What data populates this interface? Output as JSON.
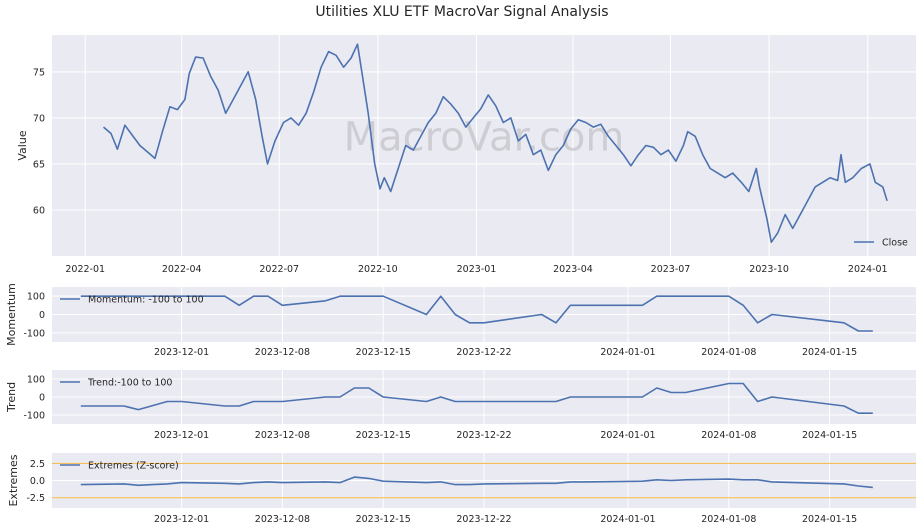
{
  "title": "Utilities XLU ETF MacroVar Signal Analysis",
  "watermark": "MacroVar.com",
  "colors": {
    "line": "#4c72b0",
    "band": "#f5b642",
    "panel_bg": "#eaeaf2",
    "grid": "#ffffff"
  },
  "chart_data": [
    {
      "type": "line",
      "ylabel": "Value",
      "legend": "bottom-right",
      "x_ticks": [
        "2022-01",
        "2022-04",
        "2022-07",
        "2022-10",
        "2023-01",
        "2023-04",
        "2023-07",
        "2023-10",
        "2024-01"
      ],
      "y_ticks": [
        "60",
        "65",
        "70",
        "75"
      ],
      "ylim": [
        55,
        79
      ],
      "xlim": [
        "2021-12-01",
        "2024-02-15"
      ],
      "series": [
        {
          "name": "Close",
          "points": [
            [
              "2022-01-18",
              69.0
            ],
            [
              "2022-01-25",
              68.3
            ],
            [
              "2022-01-31",
              66.6
            ],
            [
              "2022-02-07",
              69.2
            ],
            [
              "2022-02-14",
              68.1
            ],
            [
              "2022-02-21",
              67.0
            ],
            [
              "2022-02-28",
              66.3
            ],
            [
              "2022-03-07",
              65.6
            ],
            [
              "2022-03-10",
              66.8
            ],
            [
              "2022-03-14",
              68.5
            ],
            [
              "2022-03-21",
              71.2
            ],
            [
              "2022-03-28",
              70.9
            ],
            [
              "2022-04-04",
              72.0
            ],
            [
              "2022-04-08",
              74.8
            ],
            [
              "2022-04-14",
              76.6
            ],
            [
              "2022-04-21",
              76.5
            ],
            [
              "2022-04-28",
              74.5
            ],
            [
              "2022-05-05",
              73.0
            ],
            [
              "2022-05-12",
              70.5
            ],
            [
              "2022-05-19",
              72.0
            ],
            [
              "2022-05-26",
              73.5
            ],
            [
              "2022-06-02",
              75.0
            ],
            [
              "2022-06-09",
              72.0
            ],
            [
              "2022-06-15",
              68.0
            ],
            [
              "2022-06-20",
              65.0
            ],
            [
              "2022-06-27",
              67.5
            ],
            [
              "2022-07-05",
              69.5
            ],
            [
              "2022-07-12",
              70.0
            ],
            [
              "2022-07-19",
              69.2
            ],
            [
              "2022-07-26",
              70.5
            ],
            [
              "2022-08-02",
              72.8
            ],
            [
              "2022-08-09",
              75.5
            ],
            [
              "2022-08-16",
              77.2
            ],
            [
              "2022-08-23",
              76.8
            ],
            [
              "2022-08-30",
              75.5
            ],
            [
              "2022-09-06",
              76.5
            ],
            [
              "2022-09-12",
              78.0
            ],
            [
              "2022-09-16",
              75.0
            ],
            [
              "2022-09-22",
              70.5
            ],
            [
              "2022-09-28",
              65.0
            ],
            [
              "2022-10-03",
              62.3
            ],
            [
              "2022-10-07",
              63.5
            ],
            [
              "2022-10-13",
              62.0
            ],
            [
              "2022-10-20",
              64.5
            ],
            [
              "2022-10-27",
              67.0
            ],
            [
              "2022-11-03",
              66.5
            ],
            [
              "2022-11-10",
              68.0
            ],
            [
              "2022-11-17",
              69.5
            ],
            [
              "2022-11-24",
              70.5
            ],
            [
              "2022-12-01",
              72.3
            ],
            [
              "2022-12-08",
              71.5
            ],
            [
              "2022-12-15",
              70.5
            ],
            [
              "2022-12-22",
              69.0
            ],
            [
              "2022-12-29",
              70.0
            ],
            [
              "2023-01-05",
              71.0
            ],
            [
              "2023-01-12",
              72.5
            ],
            [
              "2023-01-19",
              71.3
            ],
            [
              "2023-01-26",
              69.5
            ],
            [
              "2023-02-02",
              70.0
            ],
            [
              "2023-02-09",
              67.5
            ],
            [
              "2023-02-16",
              68.2
            ],
            [
              "2023-02-23",
              66.0
            ],
            [
              "2023-03-02",
              66.5
            ],
            [
              "2023-03-09",
              64.3
            ],
            [
              "2023-03-16",
              66.0
            ],
            [
              "2023-03-23",
              67.0
            ],
            [
              "2023-03-30",
              68.8
            ],
            [
              "2023-04-06",
              69.8
            ],
            [
              "2023-04-13",
              69.5
            ],
            [
              "2023-04-20",
              69.0
            ],
            [
              "2023-04-27",
              69.3
            ],
            [
              "2023-05-04",
              68.0
            ],
            [
              "2023-05-11",
              67.0
            ],
            [
              "2023-05-18",
              66.0
            ],
            [
              "2023-05-25",
              64.8
            ],
            [
              "2023-06-01",
              66.0
            ],
            [
              "2023-06-08",
              67.0
            ],
            [
              "2023-06-15",
              66.8
            ],
            [
              "2023-06-22",
              66.0
            ],
            [
              "2023-06-29",
              66.5
            ],
            [
              "2023-07-06",
              65.3
            ],
            [
              "2023-07-13",
              67.0
            ],
            [
              "2023-07-17",
              68.5
            ],
            [
              "2023-07-24",
              68.0
            ],
            [
              "2023-07-31",
              66.0
            ],
            [
              "2023-08-07",
              64.5
            ],
            [
              "2023-08-14",
              64.0
            ],
            [
              "2023-08-21",
              63.5
            ],
            [
              "2023-08-28",
              64.0
            ],
            [
              "2023-09-05",
              63.0
            ],
            [
              "2023-09-12",
              62.0
            ],
            [
              "2023-09-19",
              64.5
            ],
            [
              "2023-09-22",
              62.5
            ],
            [
              "2023-09-29",
              59.0
            ],
            [
              "2023-10-03",
              56.5
            ],
            [
              "2023-10-09",
              57.5
            ],
            [
              "2023-10-16",
              59.5
            ],
            [
              "2023-10-23",
              58.0
            ],
            [
              "2023-10-30",
              59.5
            ],
            [
              "2023-11-06",
              61.0
            ],
            [
              "2023-11-13",
              62.5
            ],
            [
              "2023-11-20",
              63.0
            ],
            [
              "2023-11-27",
              63.5
            ],
            [
              "2023-12-04",
              63.2
            ],
            [
              "2023-12-07",
              66.0
            ],
            [
              "2023-12-11",
              63.0
            ],
            [
              "2023-12-18",
              63.5
            ],
            [
              "2023-12-26",
              64.5
            ],
            [
              "2024-01-03",
              65.0
            ],
            [
              "2024-01-08",
              63.0
            ],
            [
              "2024-01-15",
              62.5
            ],
            [
              "2024-01-19",
              61.0
            ]
          ]
        }
      ]
    },
    {
      "type": "line",
      "ylabel": "Momentum",
      "legend": "top-left",
      "x_ticks": [
        "2023-12-01",
        "2023-12-08",
        "2023-12-15",
        "2023-12-22",
        "2024-01-01",
        "2024-01-08",
        "2024-01-15"
      ],
      "y_ticks": [
        "100",
        "0",
        "-100"
      ],
      "ylim": [
        -150,
        150
      ],
      "xlim": [
        "2023-11-22",
        "2024-01-21"
      ],
      "series": [
        {
          "name": "Momentum: -100 to 100",
          "points": [
            [
              "2023-11-24",
              100
            ],
            [
              "2023-11-27",
              100
            ],
            [
              "2023-11-28",
              100
            ],
            [
              "2023-11-29",
              100
            ],
            [
              "2023-11-30",
              100
            ],
            [
              "2023-12-01",
              100
            ],
            [
              "2023-12-04",
              100
            ],
            [
              "2023-12-05",
              50
            ],
            [
              "2023-12-06",
              100
            ],
            [
              "2023-12-07",
              100
            ],
            [
              "2023-12-08",
              50
            ],
            [
              "2023-12-11",
              75
            ],
            [
              "2023-12-12",
              100
            ],
            [
              "2023-12-13",
              100
            ],
            [
              "2023-12-14",
              100
            ],
            [
              "2023-12-15",
              100
            ],
            [
              "2023-12-18",
              0
            ],
            [
              "2023-12-19",
              100
            ],
            [
              "2023-12-20",
              0
            ],
            [
              "2023-12-21",
              -45
            ],
            [
              "2023-12-22",
              -45
            ],
            [
              "2023-12-26",
              0
            ],
            [
              "2023-12-27",
              -45
            ],
            [
              "2023-12-28",
              50
            ],
            [
              "2023-12-29",
              50
            ],
            [
              "2024-01-02",
              50
            ],
            [
              "2024-01-03",
              100
            ],
            [
              "2024-01-04",
              100
            ],
            [
              "2024-01-05",
              100
            ],
            [
              "2024-01-08",
              100
            ],
            [
              "2024-01-09",
              50
            ],
            [
              "2024-01-10",
              -45
            ],
            [
              "2024-01-11",
              0
            ],
            [
              "2024-01-16",
              -45
            ],
            [
              "2024-01-17",
              -90
            ],
            [
              "2024-01-18",
              -90
            ]
          ]
        }
      ]
    },
    {
      "type": "line",
      "ylabel": "Trend",
      "legend": "top-left",
      "x_ticks": [
        "2023-12-01",
        "2023-12-08",
        "2023-12-15",
        "2023-12-22",
        "2024-01-01",
        "2024-01-08",
        "2024-01-15"
      ],
      "y_ticks": [
        "100",
        "0",
        "-100"
      ],
      "ylim": [
        -150,
        150
      ],
      "xlim": [
        "2023-11-22",
        "2024-01-21"
      ],
      "series": [
        {
          "name": "Trend:-100 to 100",
          "points": [
            [
              "2023-11-24",
              -50
            ],
            [
              "2023-11-27",
              -50
            ],
            [
              "2023-11-28",
              -70
            ],
            [
              "2023-11-30",
              -25
            ],
            [
              "2023-12-01",
              -25
            ],
            [
              "2023-12-04",
              -50
            ],
            [
              "2023-12-05",
              -50
            ],
            [
              "2023-12-06",
              -25
            ],
            [
              "2023-12-07",
              -25
            ],
            [
              "2023-12-08",
              -25
            ],
            [
              "2023-12-11",
              0
            ],
            [
              "2023-12-12",
              0
            ],
            [
              "2023-12-13",
              50
            ],
            [
              "2023-12-14",
              50
            ],
            [
              "2023-12-15",
              0
            ],
            [
              "2023-12-18",
              -25
            ],
            [
              "2023-12-19",
              0
            ],
            [
              "2023-12-20",
              -25
            ],
            [
              "2023-12-21",
              -25
            ],
            [
              "2023-12-22",
              -25
            ],
            [
              "2023-12-26",
              -25
            ],
            [
              "2023-12-27",
              -25
            ],
            [
              "2023-12-28",
              0
            ],
            [
              "2023-12-29",
              0
            ],
            [
              "2024-01-02",
              0
            ],
            [
              "2024-01-03",
              50
            ],
            [
              "2024-01-04",
              25
            ],
            [
              "2024-01-05",
              25
            ],
            [
              "2024-01-08",
              75
            ],
            [
              "2024-01-09",
              75
            ],
            [
              "2024-01-10",
              -25
            ],
            [
              "2024-01-11",
              0
            ],
            [
              "2024-01-16",
              -50
            ],
            [
              "2024-01-17",
              -90
            ],
            [
              "2024-01-18",
              -90
            ]
          ]
        }
      ]
    },
    {
      "type": "line",
      "ylabel": "Extremes",
      "legend": "top-left",
      "x_ticks": [
        "2023-12-01",
        "2023-12-08",
        "2023-12-15",
        "2023-12-22",
        "2024-01-01",
        "2024-01-08",
        "2024-01-15"
      ],
      "y_ticks": [
        "2.5",
        "0.0",
        "-2.5"
      ],
      "ylim": [
        -4.0,
        4.0
      ],
      "xlim": [
        "2023-11-22",
        "2024-01-21"
      ],
      "hlines": [
        2.5,
        -2.5
      ],
      "series": [
        {
          "name": "Extremes (Z-score)",
          "points": [
            [
              "2023-11-24",
              -0.6
            ],
            [
              "2023-11-27",
              -0.5
            ],
            [
              "2023-11-28",
              -0.7
            ],
            [
              "2023-11-29",
              -0.6
            ],
            [
              "2023-11-30",
              -0.5
            ],
            [
              "2023-12-01",
              -0.3
            ],
            [
              "2023-12-04",
              -0.4
            ],
            [
              "2023-12-05",
              -0.5
            ],
            [
              "2023-12-06",
              -0.3
            ],
            [
              "2023-12-07",
              -0.2
            ],
            [
              "2023-12-08",
              -0.3
            ],
            [
              "2023-12-11",
              -0.2
            ],
            [
              "2023-12-12",
              -0.3
            ],
            [
              "2023-12-13",
              0.5
            ],
            [
              "2023-12-14",
              0.3
            ],
            [
              "2023-12-15",
              -0.1
            ],
            [
              "2023-12-18",
              -0.3
            ],
            [
              "2023-12-19",
              -0.2
            ],
            [
              "2023-12-20",
              -0.6
            ],
            [
              "2023-12-21",
              -0.6
            ],
            [
              "2023-12-22",
              -0.5
            ],
            [
              "2023-12-26",
              -0.4
            ],
            [
              "2023-12-27",
              -0.4
            ],
            [
              "2023-12-28",
              -0.2
            ],
            [
              "2023-12-29",
              -0.2
            ],
            [
              "2024-01-02",
              -0.1
            ],
            [
              "2024-01-03",
              0.1
            ],
            [
              "2024-01-04",
              0.0
            ],
            [
              "2024-01-05",
              0.1
            ],
            [
              "2024-01-08",
              0.2
            ],
            [
              "2024-01-09",
              0.1
            ],
            [
              "2024-01-10",
              0.1
            ],
            [
              "2024-01-11",
              -0.2
            ],
            [
              "2024-01-16",
              -0.5
            ],
            [
              "2024-01-17",
              -0.8
            ],
            [
              "2024-01-18",
              -1.0
            ]
          ]
        }
      ]
    }
  ]
}
